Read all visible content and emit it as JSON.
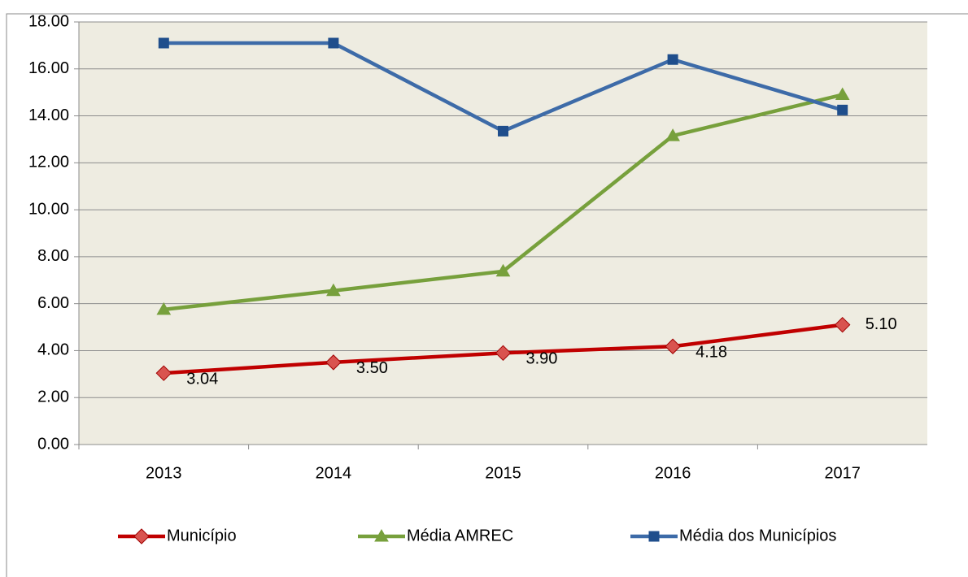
{
  "chart_data": {
    "type": "line",
    "categories": [
      "2013",
      "2014",
      "2015",
      "2016",
      "2017"
    ],
    "series": [
      {
        "name": "Município",
        "color": "#c00000",
        "marker_color": "#d9534f",
        "marker": "diamond",
        "values": [
          3.04,
          3.5,
          3.9,
          4.18,
          5.1
        ],
        "value_labels": [
          "3.04",
          "3.50",
          "3.90",
          "4.18",
          "5.10"
        ]
      },
      {
        "name": "Média AMREC",
        "color": "#77a03c",
        "marker_color": "#77a03c",
        "marker": "triangle",
        "values": [
          5.75,
          6.55,
          7.38,
          13.15,
          14.9
        ]
      },
      {
        "name": "Média dos Municípios",
        "color": "#3d6ba8",
        "marker_color": "#1f4e8c",
        "marker": "square",
        "values": [
          17.1,
          17.1,
          13.35,
          16.4,
          14.25
        ]
      }
    ],
    "ylim": [
      0,
      18
    ],
    "yticks": [
      {
        "value": 0,
        "label": "0.00"
      },
      {
        "value": 2,
        "label": "2.00"
      },
      {
        "value": 4,
        "label": "4.00"
      },
      {
        "value": 6,
        "label": "6.00"
      },
      {
        "value": 8,
        "label": "8.00"
      },
      {
        "value": 10,
        "label": "10.00"
      },
      {
        "value": 12,
        "label": "12.00"
      },
      {
        "value": 14,
        "label": "14.00"
      },
      {
        "value": 16,
        "label": "16.00"
      },
      {
        "value": 18,
        "label": "18.00"
      }
    ],
    "grid": true,
    "legend": "bottom",
    "plot_background": "#eeece1"
  }
}
